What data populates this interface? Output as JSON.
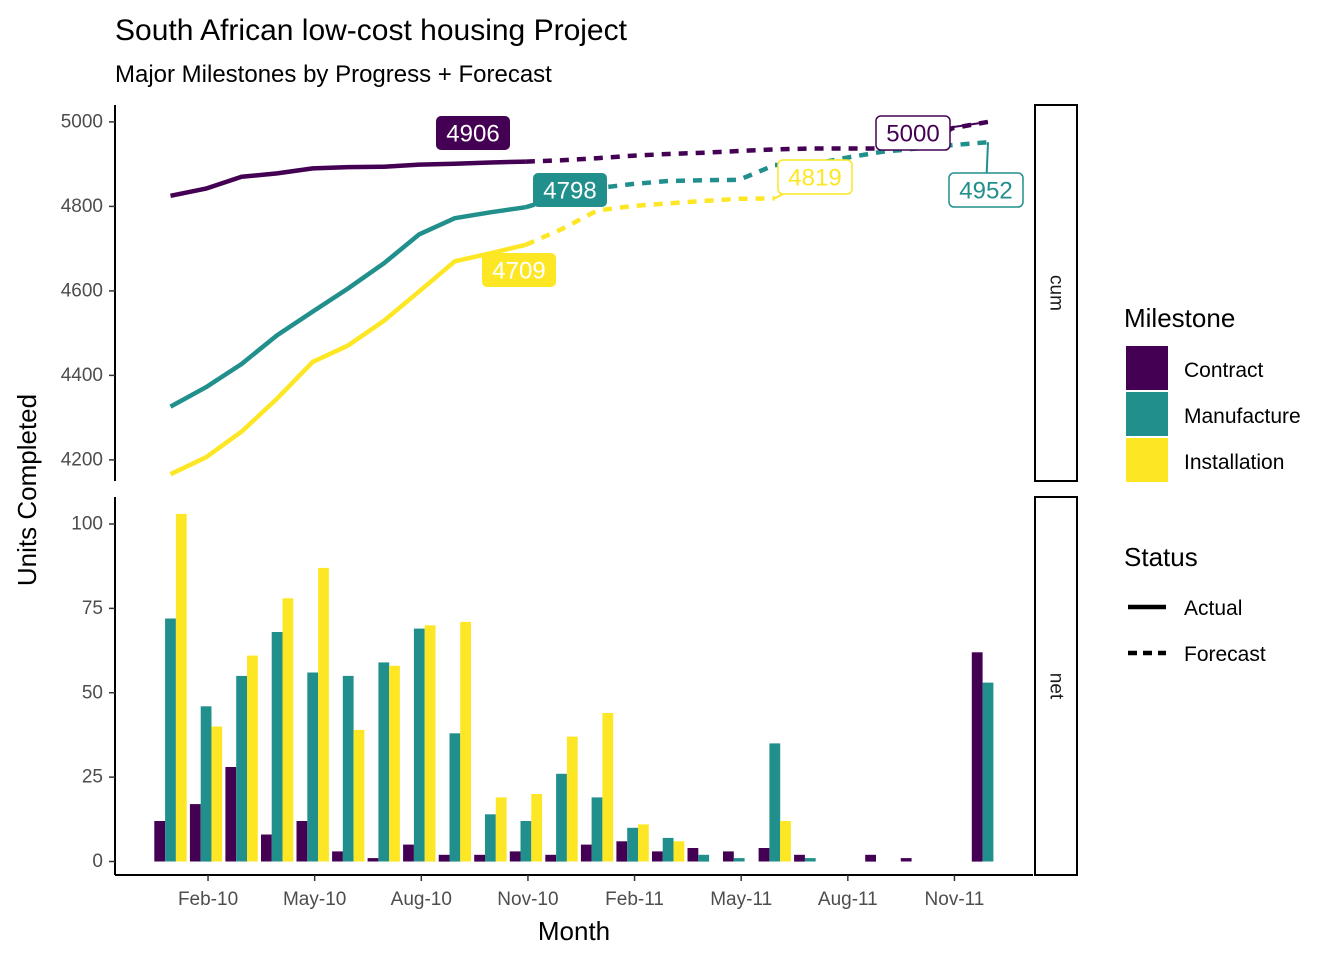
{
  "title": "South African low-cost housing Project",
  "subtitle": "Major Milestones by Progress + Forecast",
  "xlabel": "Month",
  "ylabel": "Units Completed",
  "legend_milestone": {
    "title": "Milestone",
    "items": [
      {
        "label": "Contract",
        "color": "#440154"
      },
      {
        "label": "Manufacture",
        "color": "#21908C"
      },
      {
        "label": "Installation",
        "color": "#FDE725"
      }
    ]
  },
  "legend_status": {
    "title": "Status",
    "items": [
      {
        "label": "Actual",
        "line": "solid"
      },
      {
        "label": "Forecast",
        "line": "dashed"
      }
    ]
  },
  "chart_data": [
    {
      "panel": "cum",
      "type": "line",
      "x_ticks": [
        "Feb-10",
        "May-10",
        "Aug-10",
        "Nov-10",
        "Feb-11",
        "May-11",
        "Aug-11",
        "Nov-11"
      ],
      "ylim": [
        4150,
        5040
      ],
      "y_ticks": [
        4200,
        4400,
        4600,
        4800,
        5000
      ],
      "series": [
        {
          "name": "Contract",
          "status": "Actual",
          "color": "#440154",
          "x": [
            "Jan-10",
            "Feb-10",
            "Mar-10",
            "Apr-10",
            "May-10",
            "Jun-10",
            "Jul-10",
            "Aug-10",
            "Sep-10",
            "Oct-10",
            "Nov-10"
          ],
          "values": [
            4825,
            4842,
            4870,
            4878,
            4890,
            4893,
            4894,
            4899,
            4901,
            4904,
            4906
          ]
        },
        {
          "name": "Contract",
          "status": "Forecast",
          "color": "#440154",
          "x": [
            "Nov-10",
            "Dec-10",
            "Jan-11",
            "Feb-11",
            "Mar-11",
            "Apr-11",
            "May-11",
            "Jun-11",
            "Jul-11",
            "Aug-11",
            "Sep-11",
            "Oct-11",
            "Nov-11",
            "Dec-11"
          ],
          "values": [
            4906,
            4909,
            4914,
            4920,
            4924,
            4927,
            4931,
            4935,
            4937,
            4937,
            4937,
            4938,
            4985,
            5000
          ]
        },
        {
          "name": "Manufacture",
          "status": "Actual",
          "color": "#21908C",
          "x": [
            "Jan-10",
            "Feb-10",
            "Mar-10",
            "Apr-10",
            "May-10",
            "Jun-10",
            "Jul-10",
            "Aug-10",
            "Sep-10",
            "Oct-10",
            "Nov-10"
          ],
          "values": [
            4326,
            4372,
            4427,
            4495,
            4551,
            4606,
            4665,
            4734,
            4772,
            4786,
            4798
          ]
        },
        {
          "name": "Manufacture",
          "status": "Forecast",
          "color": "#21908C",
          "x": [
            "Nov-10",
            "Dec-10",
            "Jan-11",
            "Feb-11",
            "Mar-11",
            "Apr-11",
            "May-11",
            "Jun-11",
            "Jul-11",
            "Aug-11",
            "Sep-11",
            "Oct-11",
            "Nov-11",
            "Dec-11"
          ],
          "values": [
            4798,
            4824,
            4843,
            4853,
            4860,
            4862,
            4863,
            4898,
            4899,
            4915,
            4929,
            4937,
            4945,
            4952
          ]
        },
        {
          "name": "Installation",
          "status": "Actual",
          "color": "#FDE725",
          "x": [
            "Jan-10",
            "Feb-10",
            "Mar-10",
            "Apr-10",
            "May-10",
            "Jun-10",
            "Jul-10",
            "Aug-10",
            "Sep-10",
            "Oct-10",
            "Nov-10"
          ],
          "values": [
            4166,
            4206,
            4267,
            4345,
            4432,
            4471,
            4529,
            4599,
            4670,
            4689,
            4709
          ]
        },
        {
          "name": "Installation",
          "status": "Forecast",
          "color": "#FDE725",
          "x": [
            "Nov-10",
            "Dec-10",
            "Jan-11",
            "Feb-11",
            "Mar-11",
            "Apr-11",
            "May-11",
            "Jun-11"
          ],
          "values": [
            4709,
            4746,
            4790,
            4801,
            4807,
            4813,
            4818,
            4819
          ]
        }
      ],
      "labels": [
        {
          "text": "4906",
          "series": "Contract",
          "style": "filled"
        },
        {
          "text": "4798",
          "series": "Manufacture",
          "style": "filled"
        },
        {
          "text": "4709",
          "series": "Installation",
          "style": "filled"
        },
        {
          "text": "5000",
          "series": "Contract",
          "style": "outline"
        },
        {
          "text": "4952",
          "series": "Manufacture",
          "style": "outline"
        },
        {
          "text": "4819",
          "series": "Installation",
          "style": "outline"
        }
      ]
    },
    {
      "panel": "net",
      "type": "bar",
      "categories": [
        "Jan-10",
        "Feb-10",
        "Mar-10",
        "Apr-10",
        "May-10",
        "Jun-10",
        "Jul-10",
        "Aug-10",
        "Sep-10",
        "Oct-10",
        "Nov-10",
        "Dec-10",
        "Jan-11",
        "Feb-11",
        "Mar-11",
        "Apr-11",
        "May-11",
        "Jun-11",
        "Jul-11",
        "Aug-11",
        "Sep-11",
        "Oct-11",
        "Nov-11",
        "Dec-11"
      ],
      "ylim": [
        -4,
        108
      ],
      "y_ticks": [
        0,
        25,
        50,
        75,
        100
      ],
      "series": [
        {
          "name": "Contract",
          "values": [
            12,
            17,
            28,
            8,
            12,
            3,
            1,
            5,
            2,
            2,
            3,
            2,
            5,
            6,
            3,
            4,
            3,
            4,
            2,
            0,
            2,
            1,
            0,
            62
          ]
        },
        {
          "name": "Manufacture",
          "values": [
            72,
            46,
            55,
            68,
            56,
            55,
            59,
            69,
            38,
            14,
            12,
            26,
            19,
            10,
            7,
            2,
            1,
            35,
            1,
            0,
            0,
            0,
            0,
            53
          ]
        },
        {
          "name": "Installation",
          "values": [
            103,
            40,
            61,
            78,
            87,
            39,
            58,
            70,
            71,
            19,
            20,
            37,
            44,
            11,
            6,
            0,
            0,
            12,
            0,
            0,
            0,
            0,
            0,
            0
          ]
        }
      ]
    }
  ]
}
